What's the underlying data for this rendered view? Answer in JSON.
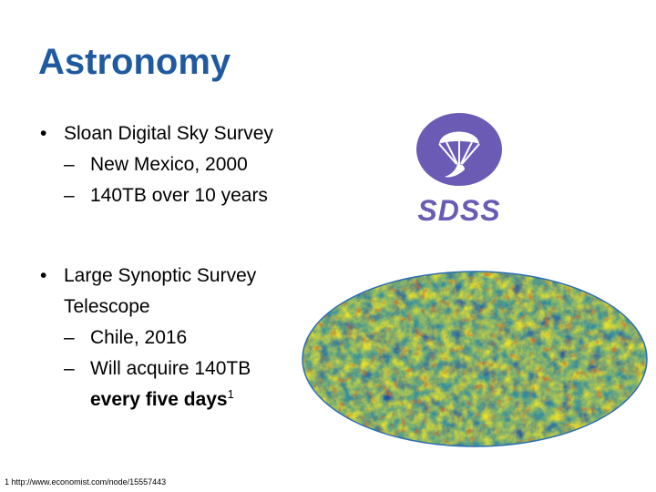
{
  "slide": {
    "title": "Astronomy",
    "bullets": [
      {
        "text": "Sloan Digital Sky Survey",
        "subs": [
          "New Mexico, 2000",
          "140TB over 10 years"
        ]
      },
      {
        "text_line1": "Large Synoptic Survey",
        "text_line2": "Telescope",
        "subs": [
          "Chile, 2016",
          "Will acquire 140TB"
        ],
        "sub_cont": "every five days",
        "sup": "1"
      }
    ],
    "bullet_glyph": "•",
    "dash_glyph": "–",
    "footnote_num": "1",
    "footnote_text": "http://www.economist.com/node/15557443",
    "logo_text": "SDSS",
    "colors": {
      "title": "#1f5aa0",
      "logo_purple": "#6b5bb5"
    }
  }
}
